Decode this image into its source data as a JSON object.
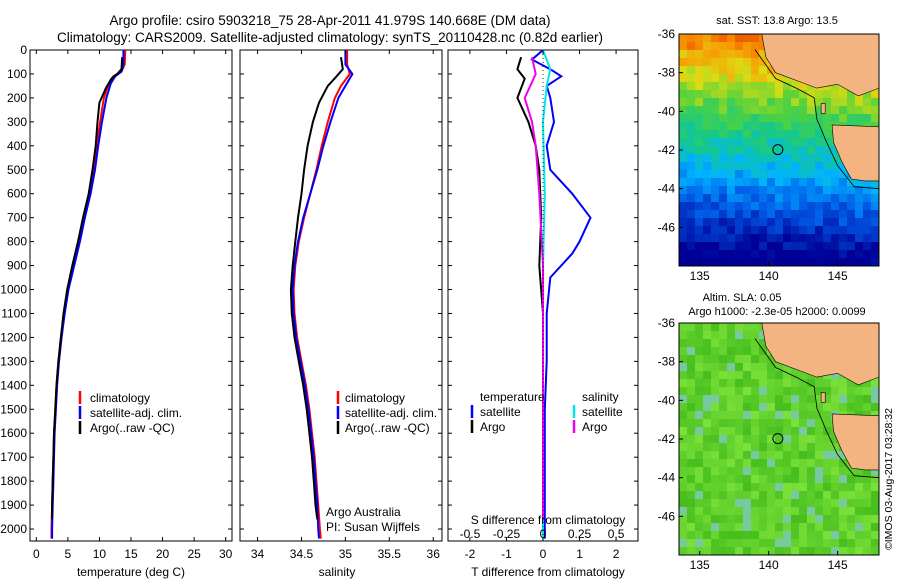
{
  "header": {
    "line1": "Argo profile: csiro 5903218_75 28-Apr-2011 41.979S 140.668E (DM data)",
    "line2": "Climatology: CARS2009. Satellite-adjusted climatology: synTS_20110428.nc (0.82d earlier)"
  },
  "panels": {
    "temperature": {
      "xlabel": "temperature (deg C)"
    },
    "salinity": {
      "xlabel": "salinity",
      "note1": "Argo Australia",
      "note2": "PI: Susan Wijffels"
    },
    "difference": {
      "xlabel_top": "S difference from climatology",
      "xlabel_bottom": "T difference from climatology"
    },
    "sst_map": {
      "title": "sat. SST: 13.8  Argo: 13.5"
    },
    "sla_map": {
      "title1": "Altim. SLA: 0.05",
      "title2": "Argo h1000: -2.3e-05 h2000: 0.0099"
    }
  },
  "legend_profiles": {
    "items": [
      {
        "label": "climatology",
        "color": "#ff0000"
      },
      {
        "label": "satellite-adj. clim.",
        "color": "#0000ff"
      },
      {
        "label": "Argo(..raw -QC)",
        "color": "#000000"
      }
    ]
  },
  "legend_diff": {
    "temp_header": "temperature",
    "sal_header": "salinity",
    "items": [
      {
        "label": "satellite",
        "color": "#0000ff",
        "group": "temperature"
      },
      {
        "label": "Argo",
        "color": "#000000",
        "group": "temperature"
      },
      {
        "label": "satellite",
        "color": "#00e5ee",
        "group": "salinity"
      },
      {
        "label": "Argo",
        "color": "#ee00ee",
        "group": "salinity"
      }
    ]
  },
  "footer": {
    "credit": "©IMOS 03-Aug-2017 03:28:32"
  },
  "colors": {
    "land": "#f4b482",
    "circle": "#000000"
  },
  "chart_data": [
    {
      "type": "line",
      "name": "temperature",
      "xlabel": "temperature (deg C)",
      "ylabel": "",
      "xlim": [
        -1,
        31
      ],
      "ylim": [
        2050,
        0
      ],
      "xticks": [
        0,
        5,
        10,
        15,
        20,
        25,
        30
      ],
      "yticks": [
        0,
        100,
        200,
        300,
        400,
        500,
        600,
        700,
        800,
        900,
        1000,
        1100,
        1200,
        1300,
        1400,
        1500,
        1600,
        1700,
        1800,
        1900,
        2000
      ],
      "series": [
        {
          "name": "climatology",
          "color": "#ff0000",
          "points": [
            [
              14.1,
              0
            ],
            [
              14.0,
              60
            ],
            [
              13.5,
              90
            ],
            [
              12.2,
              110
            ],
            [
              11.5,
              140
            ],
            [
              10.7,
              200
            ],
            [
              10.1,
              300
            ],
            [
              9.6,
              400
            ],
            [
              9.1,
              500
            ],
            [
              8.5,
              600
            ],
            [
              7.6,
              700
            ],
            [
              6.8,
              800
            ],
            [
              5.9,
              900
            ],
            [
              5.0,
              1000
            ],
            [
              4.4,
              1100
            ],
            [
              3.9,
              1200
            ],
            [
              3.5,
              1300
            ],
            [
              3.2,
              1400
            ],
            [
              3.0,
              1500
            ],
            [
              2.8,
              1600
            ],
            [
              2.7,
              1700
            ],
            [
              2.6,
              1800
            ],
            [
              2.5,
              1900
            ],
            [
              2.4,
              2000
            ],
            [
              2.4,
              2040
            ]
          ]
        },
        {
          "name": "satellite-adj. clim.",
          "color": "#0000ff",
          "points": [
            [
              13.8,
              0
            ],
            [
              13.8,
              60
            ],
            [
              13.5,
              90
            ],
            [
              12.5,
              110
            ],
            [
              11.8,
              140
            ],
            [
              11.1,
              200
            ],
            [
              10.4,
              300
            ],
            [
              9.8,
              400
            ],
            [
              9.3,
              500
            ],
            [
              8.6,
              600
            ],
            [
              7.7,
              700
            ],
            [
              6.9,
              800
            ],
            [
              6.0,
              900
            ],
            [
              5.1,
              1000
            ],
            [
              4.5,
              1100
            ],
            [
              4.0,
              1200
            ],
            [
              3.6,
              1300
            ],
            [
              3.3,
              1400
            ],
            [
              3.1,
              1500
            ],
            [
              2.9,
              1600
            ],
            [
              2.8,
              1700
            ],
            [
              2.7,
              1800
            ],
            [
              2.6,
              1900
            ],
            [
              2.5,
              2000
            ],
            [
              2.5,
              2040
            ]
          ]
        },
        {
          "name": "Argo(..raw -QC)",
          "color": "#000000",
          "points": [
            [
              13.6,
              30
            ],
            [
              13.5,
              80
            ],
            [
              12.8,
              100
            ],
            [
              11.9,
              120
            ],
            [
              11.0,
              160
            ],
            [
              10.0,
              220
            ],
            [
              9.7,
              300
            ],
            [
              9.4,
              400
            ],
            [
              8.9,
              500
            ],
            [
              8.3,
              600
            ],
            [
              7.4,
              700
            ],
            [
              6.6,
              800
            ],
            [
              5.7,
              900
            ],
            [
              4.9,
              1000
            ],
            [
              4.3,
              1100
            ],
            [
              3.9,
              1200
            ],
            [
              3.5,
              1300
            ],
            [
              3.2,
              1400
            ],
            [
              3.0,
              1500
            ],
            [
              2.8,
              1600
            ],
            [
              2.7,
              1700
            ],
            [
              2.6,
              1800
            ],
            [
              2.5,
              1900
            ],
            [
              2.5,
              1960
            ]
          ]
        }
      ]
    },
    {
      "type": "line",
      "name": "salinity",
      "xlabel": "salinity",
      "ylabel": "",
      "xlim": [
        33.8,
        36.1
      ],
      "ylim": [
        2050,
        0
      ],
      "xticks": [
        34,
        34.5,
        35,
        35.5,
        36
      ],
      "series": [
        {
          "name": "climatology",
          "color": "#ff0000",
          "points": [
            [
              35.02,
              0
            ],
            [
              35.02,
              60
            ],
            [
              35.05,
              100
            ],
            [
              34.95,
              150
            ],
            [
              34.88,
              200
            ],
            [
              34.8,
              300
            ],
            [
              34.73,
              400
            ],
            [
              34.67,
              500
            ],
            [
              34.6,
              600
            ],
            [
              34.53,
              700
            ],
            [
              34.47,
              800
            ],
            [
              34.43,
              900
            ],
            [
              34.41,
              1000
            ],
            [
              34.42,
              1100
            ],
            [
              34.45,
              1200
            ],
            [
              34.5,
              1300
            ],
            [
              34.55,
              1400
            ],
            [
              34.59,
              1500
            ],
            [
              34.62,
              1600
            ],
            [
              34.65,
              1700
            ],
            [
              34.67,
              1800
            ],
            [
              34.69,
              1900
            ],
            [
              34.71,
              2000
            ],
            [
              34.72,
              2040
            ]
          ]
        },
        {
          "name": "satellite-adj. clim.",
          "color": "#0000ff",
          "points": [
            [
              35.0,
              0
            ],
            [
              35.0,
              60
            ],
            [
              35.08,
              100
            ],
            [
              35.0,
              150
            ],
            [
              34.92,
              200
            ],
            [
              34.83,
              300
            ],
            [
              34.75,
              400
            ],
            [
              34.68,
              500
            ],
            [
              34.6,
              600
            ],
            [
              34.52,
              700
            ],
            [
              34.46,
              800
            ],
            [
              34.42,
              900
            ],
            [
              34.4,
              1000
            ],
            [
              34.41,
              1100
            ],
            [
              34.44,
              1200
            ],
            [
              34.49,
              1300
            ],
            [
              34.54,
              1400
            ],
            [
              34.58,
              1500
            ],
            [
              34.61,
              1600
            ],
            [
              34.64,
              1700
            ],
            [
              34.66,
              1800
            ],
            [
              34.68,
              1900
            ],
            [
              34.69,
              2000
            ],
            [
              34.7,
              2040
            ]
          ]
        },
        {
          "name": "Argo(..raw -QC)",
          "color": "#000000",
          "points": [
            [
              34.95,
              30
            ],
            [
              34.97,
              80
            ],
            [
              34.9,
              110
            ],
            [
              34.8,
              150
            ],
            [
              34.7,
              220
            ],
            [
              34.63,
              300
            ],
            [
              34.57,
              400
            ],
            [
              34.53,
              500
            ],
            [
              34.5,
              600
            ],
            [
              34.46,
              700
            ],
            [
              34.43,
              800
            ],
            [
              34.4,
              900
            ],
            [
              34.38,
              1000
            ],
            [
              34.39,
              1100
            ],
            [
              34.42,
              1200
            ],
            [
              34.47,
              1300
            ],
            [
              34.52,
              1400
            ],
            [
              34.56,
              1500
            ],
            [
              34.59,
              1600
            ],
            [
              34.62,
              1700
            ],
            [
              34.64,
              1800
            ],
            [
              34.66,
              1900
            ],
            [
              34.68,
              1960
            ]
          ]
        }
      ]
    },
    {
      "type": "line",
      "name": "difference",
      "xlabel": "T difference from climatology",
      "ylabel": "",
      "xlim": [
        -2.6,
        2.6
      ],
      "ylim": [
        2050,
        0
      ],
      "xticks": [
        -2,
        -1,
        0,
        1,
        2
      ],
      "xticklabels_top": [
        "-0.5",
        "-0.25",
        "0",
        "0.25",
        "0.5"
      ],
      "series": [
        {
          "name": "satellite (temperature)",
          "color": "#0000ff",
          "points": [
            [
              0.0,
              0
            ],
            [
              -0.3,
              40
            ],
            [
              0.2,
              80
            ],
            [
              0.5,
              110
            ],
            [
              0.1,
              150
            ],
            [
              0.2,
              200
            ],
            [
              0.3,
              300
            ],
            [
              0.1,
              400
            ],
            [
              0.2,
              500
            ],
            [
              0.8,
              600
            ],
            [
              1.3,
              700
            ],
            [
              1.0,
              800
            ],
            [
              0.8,
              850
            ],
            [
              0.2,
              950
            ],
            [
              0.1,
              1100
            ],
            [
              0.1,
              1300
            ],
            [
              0.05,
              1500
            ],
            [
              0.05,
              1700
            ],
            [
              0.05,
              1900
            ],
            [
              0.05,
              2040
            ]
          ]
        },
        {
          "name": "Argo (temperature)",
          "color": "#000000",
          "points": [
            [
              -0.6,
              30
            ],
            [
              -0.7,
              80
            ],
            [
              -0.5,
              120
            ],
            [
              -0.7,
              200
            ],
            [
              -0.4,
              300
            ],
            [
              -0.2,
              400
            ],
            [
              -0.1,
              500
            ],
            [
              -0.05,
              700
            ],
            [
              -0.1,
              900
            ],
            [
              0.0,
              1100
            ],
            [
              0.0,
              1400
            ],
            [
              0.0,
              1700
            ],
            [
              0.0,
              1960
            ]
          ]
        },
        {
          "name": "satellite (salinity)",
          "color": "#00e5ee",
          "points": [
            [
              0.0,
              0
            ],
            [
              0.2,
              80
            ],
            [
              0.1,
              150
            ],
            [
              0.0,
              300
            ],
            [
              0.05,
              600
            ],
            [
              0.0,
              900
            ],
            [
              0.0,
              1200
            ],
            [
              0.0,
              1500
            ],
            [
              0.0,
              1800
            ],
            [
              0.0,
              2040
            ]
          ]
        },
        {
          "name": "Argo (salinity)",
          "color": "#ee00ee",
          "points": [
            [
              -0.3,
              30
            ],
            [
              -0.2,
              100
            ],
            [
              -0.5,
              200
            ],
            [
              -0.3,
              300
            ],
            [
              -0.2,
              400
            ],
            [
              -0.1,
              600
            ],
            [
              0.0,
              900
            ],
            [
              0.0,
              1200
            ],
            [
              0.0,
              1500
            ],
            [
              0.0,
              1800
            ],
            [
              0.0,
              1960
            ]
          ]
        }
      ]
    },
    {
      "type": "heatmap",
      "name": "sst_map",
      "title": "sat. SST: 13.8  Argo: 13.5",
      "xlim": [
        133.5,
        148
      ],
      "ylim": [
        -48,
        -36
      ],
      "xticks": [
        135,
        140,
        145
      ],
      "yticks": [
        -36,
        -38,
        -40,
        -42,
        -44,
        -46
      ],
      "argo_position": [
        140.668,
        -41.979
      ]
    },
    {
      "type": "heatmap",
      "name": "sla_map",
      "title": "Altim. SLA: 0.05",
      "xlim": [
        133.5,
        148
      ],
      "ylim": [
        -48,
        -36
      ],
      "xticks": [
        135,
        140,
        145
      ],
      "yticks": [
        -36,
        -38,
        -40,
        -42,
        -44,
        -46
      ],
      "argo_position": [
        140.668,
        -41.979
      ]
    }
  ]
}
